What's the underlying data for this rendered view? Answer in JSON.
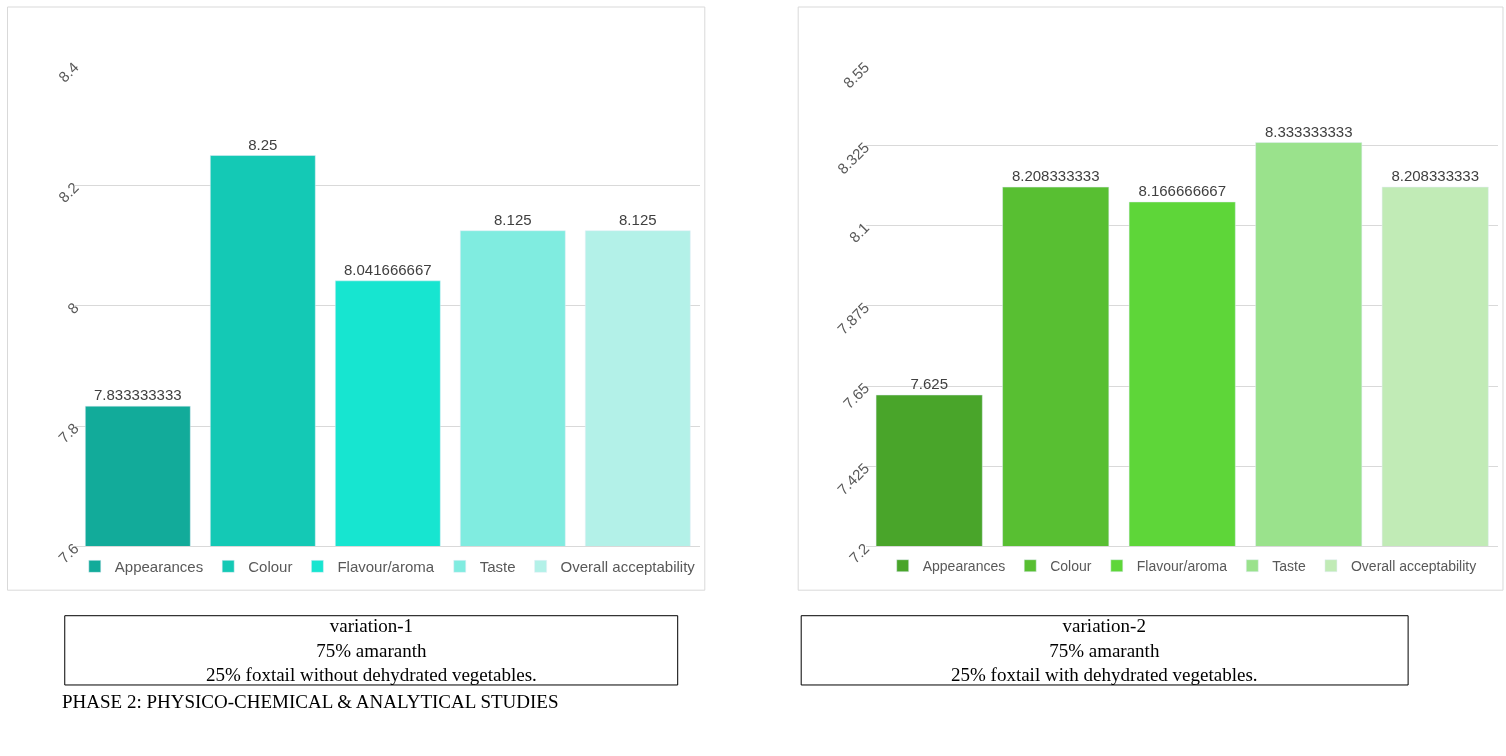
{
  "chart_data": [
    {
      "type": "bar",
      "categories": [
        null
      ],
      "ylim": [
        7.6,
        8.4
      ],
      "yticks": [
        7.6,
        7.8,
        8,
        8.2,
        8.4
      ],
      "grid": "y",
      "legend": "bottom",
      "data_labels": true,
      "tick_labels": "y",
      "series": [
        {
          "name": "Appearances",
          "color": "#12ab9a",
          "values": [
            7.833333333
          ]
        },
        {
          "name": "Colour",
          "color": "#14c9b5",
          "values": [
            8.25
          ]
        },
        {
          "name": "Flavour/aroma",
          "color": "#17e5d0",
          "values": [
            8.041666667
          ]
        },
        {
          "name": "Taste",
          "color": "#80ece0",
          "values": [
            8.125
          ]
        },
        {
          "name": "Overall acceptability",
          "color": "#b3f1e8",
          "values": [
            8.125
          ]
        }
      ],
      "annotations": [
        "variation-1\n75% amaranth\n25% foxtail without dehydrated vegetables.",
        "PHASE 2: PHYSICO-CHEMICAL & ANALYTICAL STUDIES"
      ]
    },
    {
      "type": "bar",
      "categories": [
        null
      ],
      "ylim": [
        7.2,
        8.55
      ],
      "yticks": [
        7.2,
        7.425,
        7.65,
        7.875,
        8.1,
        8.325,
        8.55
      ],
      "grid": "y",
      "legend": "bottom",
      "data_labels": true,
      "tick_labels": "y",
      "series": [
        {
          "name": "Appearances",
          "color": "#49a52a",
          "values": [
            7.625
          ]
        },
        {
          "name": "Colour",
          "color": "#58bf32",
          "values": [
            8.208333333
          ]
        },
        {
          "name": "Flavour/aroma",
          "color": "#5ed639",
          "values": [
            8.166666667
          ]
        },
        {
          "name": "Taste",
          "color": "#9ae28c",
          "values": [
            8.333333333
          ]
        },
        {
          "name": "Overall acceptability",
          "color": "#c1ebb6",
          "values": [
            8.208333333
          ]
        }
      ],
      "annotations": [
        "variation-2\n75% amaranth\n25% foxtail with dehydrated vegetables."
      ]
    }
  ]
}
